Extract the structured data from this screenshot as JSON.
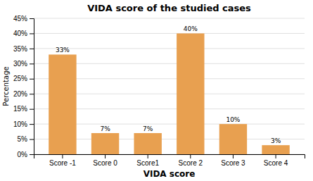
{
  "chart_data": {
    "type": "bar",
    "title": "VIDA score of the studied cases",
    "categories": [
      "Score -1",
      "Score 0",
      "Score1",
      "Score 2",
      "Score 3",
      "Score 4"
    ],
    "values": [
      33,
      7,
      7,
      40,
      10,
      3
    ],
    "value_labels": [
      "33%",
      "7%",
      "7%",
      "40%",
      "10%",
      "3%"
    ],
    "color": "#E8A050",
    "xlabel": "VIDA score",
    "ylabel": "Percentage",
    "ylim": [
      0,
      45
    ],
    "yticks": [
      {
        "value": 0,
        "label": "0%"
      },
      {
        "value": 5,
        "label": "5%"
      },
      {
        "value": 10,
        "label": "10%"
      },
      {
        "value": 15,
        "label": "15%"
      },
      {
        "value": 20,
        "label": "20%"
      },
      {
        "value": 25,
        "label": "25%"
      },
      {
        "value": 30,
        "label": "30%"
      },
      {
        "value": 35,
        "label": "35%"
      },
      {
        "value": 40,
        "label": "40%"
      },
      {
        "value": 45,
        "label": "45%"
      }
    ],
    "grid": true,
    "data_labels": true
  }
}
